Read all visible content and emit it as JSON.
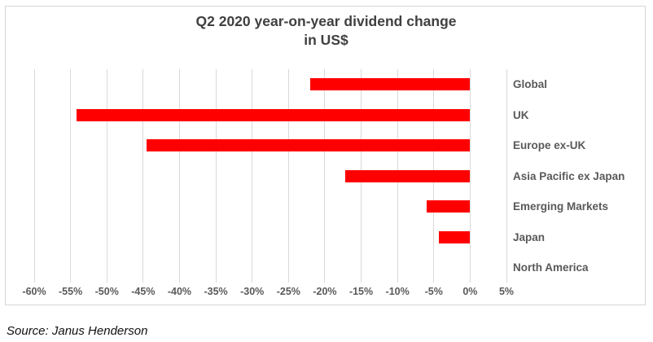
{
  "figure": {
    "title_line1": "Q2 2020 year-on-year dividend change",
    "title_line2": "in US$",
    "source": "Source: Janus Henderson"
  },
  "chart_data": {
    "type": "bar",
    "orientation": "horizontal",
    "title": "Q2 2020 year-on-year dividend change in US$",
    "xlabel": "",
    "ylabel": "",
    "unit": "%",
    "categories": [
      "Global",
      "UK",
      "Europe ex-UK",
      "Asia Pacific ex Japan",
      "Emerging Markets",
      "Japan",
      "North America"
    ],
    "values": [
      -22,
      -54.2,
      -44.5,
      -17.2,
      -6,
      -4.3,
      0
    ],
    "xlim": [
      -60,
      5
    ],
    "x_ticks": [
      -60,
      -55,
      -50,
      -45,
      -40,
      -35,
      -30,
      -25,
      -20,
      -15,
      -10,
      -5,
      0,
      5
    ],
    "x_tick_labels": [
      "-60%",
      "-55%",
      "-50%",
      "-45%",
      "-40%",
      "-35%",
      "-30%",
      "-25%",
      "-20%",
      "-15%",
      "-10%",
      "-5%",
      "0%",
      "5%"
    ],
    "grid": true,
    "legend": "none",
    "bar_color": "#ff0000",
    "gridline_color": "#d9d9d9",
    "label_color": "#595959",
    "title_color": "#404040"
  }
}
